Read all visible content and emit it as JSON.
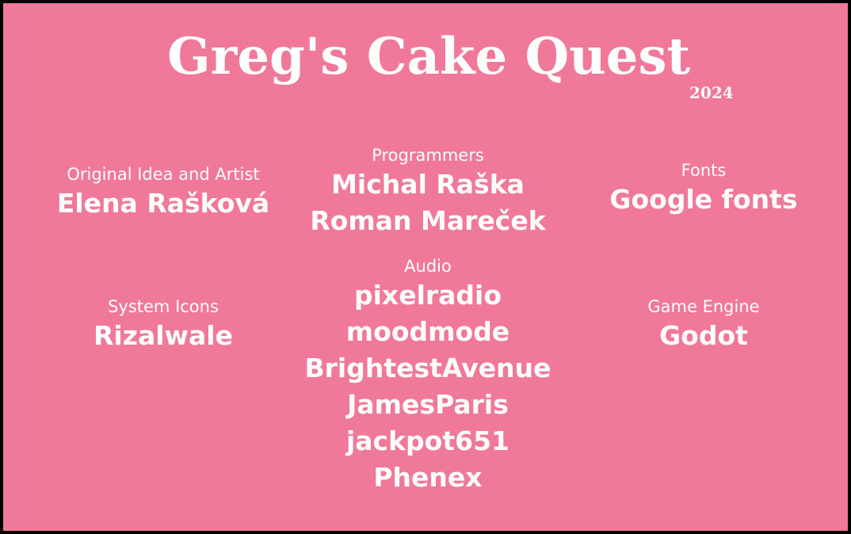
{
  "title": "Greg's Cake Quest",
  "year": "2024",
  "credits": {
    "artist": {
      "role": "Original Idea and Artist",
      "names": [
        "Elena Rašková"
      ]
    },
    "programmers": {
      "role": "Programmers",
      "names": [
        "Michal Raška",
        "Roman Mareček"
      ]
    },
    "fonts": {
      "role": "Fonts",
      "names": [
        "Google fonts"
      ]
    },
    "audio": {
      "role": "Audio",
      "names": [
        "pixelradio",
        "moodmode",
        "BrightestAvenue",
        "JamesParis",
        "jackpot651",
        "Phenex"
      ]
    },
    "icons": {
      "role": "System Icons",
      "names": [
        "Rizalwale"
      ]
    },
    "engine": {
      "role": "Game Engine",
      "names": [
        "Godot"
      ]
    }
  },
  "colors": {
    "background": "#f07898",
    "text": "#ffffff",
    "border": "#000000"
  }
}
